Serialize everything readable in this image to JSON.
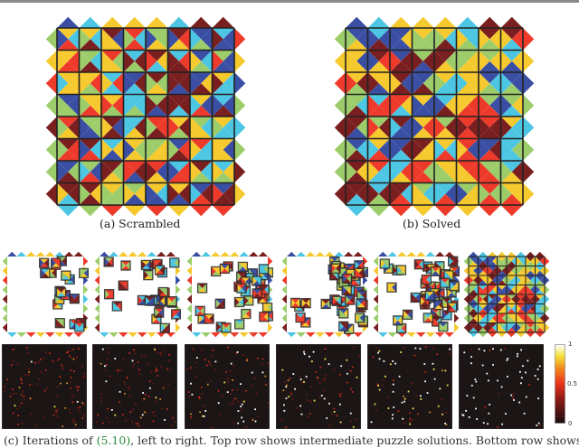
{
  "palette": {
    "B": "#3a4fa3",
    "C": "#4cc6e3",
    "Y": "#f6c92e",
    "G": "#9ccd6a",
    "R": "#ee3a2b",
    "M": "#7a1f1f"
  },
  "figure": {
    "panel_a": {
      "caption": "(a) Scrambled",
      "border_top": [
        "B",
        "C",
        "Y",
        "Y",
        "Y",
        "C",
        "M",
        "M"
      ],
      "border_bottom": [
        "C",
        "G",
        "R",
        "Y",
        "R",
        "Y",
        "R",
        "R"
      ],
      "border_left": [
        "G",
        "Y",
        "R",
        "G",
        "M",
        "G",
        "G",
        "M"
      ],
      "border_right": [
        "R",
        "Y",
        "B",
        "G",
        "C",
        "G",
        "M",
        "Y"
      ],
      "tiles": [
        [
          [
            "Y",
            "C",
            "R",
            "B"
          ],
          [
            "Y",
            "C",
            "M",
            "G"
          ],
          [
            "M",
            "B",
            "Y",
            "Y"
          ],
          [
            "R",
            "C",
            "R",
            "G"
          ],
          [
            "G",
            "G",
            "Y",
            "B"
          ],
          [
            "M",
            "R",
            "Y",
            "B"
          ],
          [
            "B",
            "B",
            "G",
            "C"
          ],
          [
            "C",
            "B",
            "B",
            "M"
          ]
        ],
        [
          [
            "Y",
            "R",
            "R",
            "Y"
          ],
          [
            "G",
            "C",
            "M",
            "G"
          ],
          [
            "R",
            "G",
            "Y",
            "Y"
          ],
          [
            "C",
            "M",
            "G",
            "M"
          ],
          [
            "M",
            "Y",
            "C",
            "R"
          ],
          [
            "C",
            "R",
            "M",
            "M"
          ],
          [
            "B",
            "C",
            "G",
            "Y"
          ],
          [
            "G",
            "B",
            "B",
            "R"
          ]
        ],
        [
          [
            "Y",
            "Y",
            "Y",
            "C"
          ],
          [
            "Y",
            "R",
            "G",
            "Y"
          ],
          [
            "C",
            "R",
            "C",
            "Y"
          ],
          [
            "B",
            "M",
            "C",
            "B"
          ],
          [
            "M",
            "G",
            "Y",
            "G"
          ],
          [
            "M",
            "M",
            "B",
            "M"
          ],
          [
            "B",
            "Y",
            "M",
            "B"
          ],
          [
            "Y",
            "C",
            "C",
            "M"
          ]
        ],
        [
          [
            "B",
            "B",
            "G",
            "G"
          ],
          [
            "Y",
            "Y",
            "R",
            "G"
          ],
          [
            "Y",
            "R",
            "G",
            "R"
          ],
          [
            "C",
            "C",
            "G",
            "C"
          ],
          [
            "G",
            "M",
            "B",
            "M"
          ],
          [
            "M",
            "M",
            "C",
            "M"
          ],
          [
            "Y",
            "B",
            "R",
            "C"
          ],
          [
            "C",
            "B",
            "M",
            "B"
          ]
        ],
        [
          [
            "R",
            "M",
            "Y",
            "G"
          ],
          [
            "G",
            "G",
            "B",
            "B"
          ],
          [
            "M",
            "B",
            "M",
            "Y"
          ],
          [
            "C",
            "M",
            "Y",
            "C"
          ],
          [
            "R",
            "R",
            "M",
            "G"
          ],
          [
            "Y",
            "M",
            "G",
            "R"
          ],
          [
            "G",
            "C",
            "Y",
            "Y"
          ],
          [
            "Y",
            "C",
            "C",
            "G"
          ]
        ],
        [
          [
            "M",
            "R",
            "R",
            "G"
          ],
          [
            "M",
            "C",
            "R",
            "B"
          ],
          [
            "C",
            "Y",
            "B",
            "Y"
          ],
          [
            "Y",
            "G",
            "Y",
            "B"
          ],
          [
            "G",
            "Y",
            "Y",
            "G"
          ],
          [
            "B",
            "R",
            "M",
            "G"
          ],
          [
            "R",
            "C",
            "C",
            "Y"
          ],
          [
            "Y",
            "B",
            "Y",
            "Y"
          ]
        ],
        [
          [
            "B",
            "G",
            "M",
            "B"
          ],
          [
            "G",
            "B",
            "R",
            "C"
          ],
          [
            "M",
            "G",
            "Y",
            "M"
          ],
          [
            "R",
            "M",
            "B",
            "R"
          ],
          [
            "R",
            "B",
            "Y",
            "M"
          ],
          [
            "C",
            "R",
            "R",
            "B"
          ],
          [
            "M",
            "C",
            "G",
            "Y"
          ],
          [
            "C",
            "Y",
            "G",
            "Y"
          ]
        ],
        [
          [
            "M",
            "M",
            "C",
            "Y"
          ],
          [
            "M",
            "Y",
            "M",
            "G"
          ],
          [
            "Y",
            "G",
            "G",
            "G"
          ],
          [
            "G",
            "Y",
            "B",
            "Y"
          ],
          [
            "Y",
            "C",
            "B",
            "B"
          ],
          [
            "Y",
            "M",
            "B",
            "M"
          ],
          [
            "B",
            "M",
            "R",
            "C"
          ],
          [
            "B",
            "M",
            "M",
            "R"
          ]
        ]
      ]
    },
    "panel_b": {
      "caption": "(b) Solved",
      "border_top": [
        "B",
        "C",
        "Y",
        "Y",
        "Y",
        "C",
        "M",
        "M"
      ],
      "border_bottom": [
        "C",
        "G",
        "R",
        "Y",
        "R",
        "Y",
        "R",
        "R"
      ],
      "border_left": [
        "G",
        "Y",
        "R",
        "G",
        "M",
        "G",
        "G",
        "M"
      ],
      "border_right": [
        "R",
        "Y",
        "B",
        "G",
        "C",
        "G",
        "M",
        "Y"
      ],
      "tiles": [
        [
          [
            "B",
            "B",
            "Y",
            "G"
          ],
          [
            "C",
            "B",
            "M",
            "B"
          ],
          [
            "B",
            "Y",
            "B",
            "B"
          ],
          [
            "Y",
            "G",
            "G",
            "G"
          ],
          [
            "Y",
            "C",
            "M",
            "G"
          ],
          [
            "C",
            "C",
            "G",
            "Y"
          ],
          [
            "M",
            "Y",
            "G",
            "Y"
          ],
          [
            "M",
            "R",
            "C",
            "Y"
          ]
        ],
        [
          [
            "Y",
            "B",
            "Y",
            "Y"
          ],
          [
            "M",
            "R",
            "Y",
            "B"
          ],
          [
            "B",
            "M",
            "M",
            "R"
          ],
          [
            "G",
            "M",
            "B",
            "M"
          ],
          [
            "M",
            "G",
            "Y",
            "M"
          ],
          [
            "G",
            "Y",
            "Y",
            "G"
          ],
          [
            "G",
            "Y",
            "B",
            "Y"
          ],
          [
            "C",
            "Y",
            "B",
            "Y"
          ]
        ],
        [
          [
            "Y",
            "M",
            "G",
            "R"
          ],
          [
            "Y",
            "Y",
            "B",
            "M"
          ],
          [
            "M",
            "B",
            "M",
            "Y"
          ],
          [
            "B",
            "G",
            "M",
            "B"
          ],
          [
            "Y",
            "C",
            "C",
            "G"
          ],
          [
            "Y",
            "Y",
            "Y",
            "C"
          ],
          [
            "B",
            "C",
            "G",
            "Y"
          ],
          [
            "B",
            "B",
            "G",
            "C"
          ]
        ],
        [
          [
            "G",
            "C",
            "M",
            "G"
          ],
          [
            "C",
            "R",
            "R",
            "R"
          ],
          [
            "R",
            "Y",
            "C",
            "R"
          ],
          [
            "Y",
            "B",
            "B",
            "B"
          ],
          [
            "C",
            "Y",
            "M",
            "B"
          ],
          [
            "Y",
            "R",
            "R",
            "Y"
          ],
          [
            "G",
            "B",
            "R",
            "R"
          ],
          [
            "G",
            "Y",
            "C",
            "B"
          ]
        ],
        [
          [
            "M",
            "G",
            "B",
            "M"
          ],
          [
            "G",
            "M",
            "Y",
            "R"
          ],
          [
            "M",
            "B",
            "B",
            "C"
          ],
          [
            "Y",
            "R",
            "Y",
            "B"
          ],
          [
            "G",
            "M",
            "Y",
            "R"
          ],
          [
            "R",
            "M",
            "R",
            "M"
          ],
          [
            "R",
            "M",
            "M",
            "M"
          ],
          [
            "Y",
            "C",
            "C",
            "M"
          ]
        ],
        [
          [
            "B",
            "C",
            "M",
            "G"
          ],
          [
            "Y",
            "B",
            "R",
            "C"
          ],
          [
            "B",
            "M",
            "C",
            "B"
          ],
          [
            "M",
            "Y",
            "Y",
            "M"
          ],
          [
            "Y",
            "C",
            "R",
            "C"
          ],
          [
            "R",
            "B",
            "R",
            "Y"
          ],
          [
            "B",
            "M",
            "R",
            "B"
          ],
          [
            "C",
            "G",
            "C",
            "C"
          ]
        ],
        [
          [
            "M",
            "Y",
            "M",
            "G"
          ],
          [
            "R",
            "C",
            "C",
            "Y"
          ],
          [
            "C",
            "R",
            "Y",
            "C"
          ],
          [
            "R",
            "G",
            "R",
            "R"
          ],
          [
            "Y",
            "Y",
            "G",
            "G"
          ],
          [
            "R",
            "R",
            "Y",
            "Y"
          ],
          [
            "G",
            "G",
            "R",
            "R"
          ],
          [
            "C",
            "M",
            "Y",
            "G"
          ]
        ],
        [
          [
            "M",
            "M",
            "C",
            "M"
          ],
          [
            "C",
            "M",
            "G",
            "M"
          ],
          [
            "M",
            "C",
            "R",
            "M"
          ],
          [
            "G",
            "C",
            "Y",
            "Y"
          ],
          [
            "C",
            "B",
            "R",
            "C"
          ],
          [
            "G",
            "Y",
            "Y",
            "B"
          ],
          [
            "R",
            "G",
            "R",
            "G"
          ],
          [
            "Y",
            "Y",
            "R",
            "G"
          ]
        ]
      ]
    },
    "iterations": {
      "count": 6,
      "colorbar": {
        "max_label": "1",
        "mid_label": "0.5",
        "min_label": "0"
      }
    },
    "main_caption": {
      "prefix": "(c) Iterations of ",
      "ref": "(5.10)",
      "suffix": ", left to right. Top row shows intermediate puzzle solutions. Bottom row shows"
    }
  }
}
